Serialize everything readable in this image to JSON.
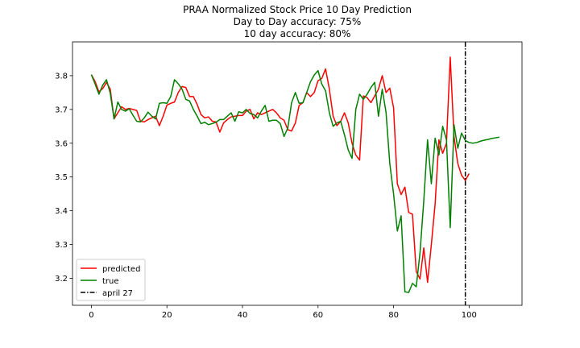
{
  "chart_data": {
    "type": "line",
    "title": "PRAA Normalized Stock Price 10 Day Prediction",
    "subtitle_lines": [
      "Day to Day accuracy: 75%",
      "10 day accuracy: 80%"
    ],
    "xlabel": "",
    "ylabel": "",
    "xlim": [
      -5,
      114
    ],
    "ylim": [
      3.12,
      3.9
    ],
    "x_ticks": [
      0,
      20,
      40,
      60,
      80,
      100
    ],
    "y_ticks": [
      3.2,
      3.3,
      3.4,
      3.5,
      3.6,
      3.7,
      3.8
    ],
    "x_tick_labels": [
      "0",
      "20",
      "40",
      "60",
      "80",
      "100"
    ],
    "y_tick_labels": [
      "3.2",
      "3.3",
      "3.4",
      "3.5",
      "3.6",
      "3.7",
      "3.8"
    ],
    "grid": false,
    "legend_position": "lower-left",
    "vline": {
      "x": 99,
      "label": "april 27",
      "color": "#000000",
      "style": "dash-dot"
    },
    "series": [
      {
        "name": "predicted",
        "color": "#ff0000",
        "x_start": 0,
        "values": [
          3.803,
          3.782,
          3.752,
          3.762,
          3.78,
          3.76,
          3.672,
          3.69,
          3.708,
          3.7,
          3.703,
          3.7,
          3.697,
          3.665,
          3.663,
          3.67,
          3.675,
          3.68,
          3.652,
          3.68,
          3.713,
          3.718,
          3.722,
          3.75,
          3.768,
          3.765,
          3.738,
          3.738,
          3.715,
          3.685,
          3.675,
          3.678,
          3.665,
          3.663,
          3.633,
          3.66,
          3.67,
          3.678,
          3.68,
          3.682,
          3.682,
          3.695,
          3.7,
          3.672,
          3.69,
          3.685,
          3.69,
          3.695,
          3.7,
          3.69,
          3.675,
          3.668,
          3.64,
          3.636,
          3.66,
          3.712,
          3.72,
          3.75,
          3.738,
          3.75,
          3.785,
          3.792,
          3.82,
          3.76,
          3.68,
          3.652,
          3.665,
          3.69,
          3.66,
          3.6,
          3.565,
          3.55,
          3.74,
          3.735,
          3.72,
          3.74,
          3.76,
          3.8,
          3.75,
          3.763,
          3.705,
          3.48,
          3.448,
          3.47,
          3.395,
          3.39,
          3.22,
          3.198,
          3.29,
          3.188,
          3.3,
          3.42,
          3.61,
          3.57,
          3.6,
          3.855,
          3.62,
          3.54,
          3.505,
          3.49,
          3.51
        ]
      },
      {
        "name": "true",
        "color": "#008000",
        "x_start": 0,
        "values": [
          3.803,
          3.775,
          3.745,
          3.772,
          3.788,
          3.748,
          3.672,
          3.722,
          3.7,
          3.695,
          3.702,
          3.683,
          3.665,
          3.663,
          3.675,
          3.692,
          3.68,
          3.672,
          3.718,
          3.72,
          3.718,
          3.738,
          3.788,
          3.776,
          3.76,
          3.73,
          3.725,
          3.7,
          3.68,
          3.658,
          3.662,
          3.655,
          3.658,
          3.662,
          3.67,
          3.67,
          3.68,
          3.69,
          3.665,
          3.693,
          3.69,
          3.7,
          3.688,
          3.685,
          3.675,
          3.695,
          3.712,
          3.665,
          3.668,
          3.668,
          3.658,
          3.62,
          3.645,
          3.72,
          3.75,
          3.718,
          3.72,
          3.75,
          3.782,
          3.802,
          3.815,
          3.775,
          3.755,
          3.69,
          3.65,
          3.66,
          3.665,
          3.625,
          3.58,
          3.555,
          3.7,
          3.745,
          3.73,
          3.745,
          3.765,
          3.78,
          3.68,
          3.76,
          3.692,
          3.54,
          3.45,
          3.34,
          3.385,
          3.16,
          3.158,
          3.185,
          3.175,
          3.275,
          3.43,
          3.61,
          3.48,
          3.615,
          3.565,
          3.65,
          3.61,
          3.35,
          3.655,
          3.585,
          3.63,
          3.608,
          3.602,
          3.6,
          3.602,
          3.606,
          3.609,
          3.611,
          3.614,
          3.616,
          3.618
        ]
      }
    ]
  }
}
